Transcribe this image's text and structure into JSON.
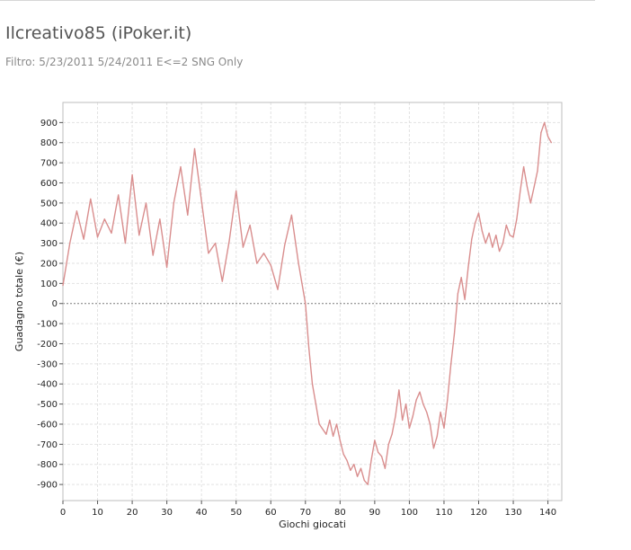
{
  "header": {
    "title": "Ilcreativo85 (iPoker.it)",
    "filter": "Filtro: 5/23/2011 5/24/2011 E<=2 SNG Only"
  },
  "colors": {
    "line": "#d98e8e",
    "grid": "#e2e2e2",
    "zero_line": "#7a7a7a",
    "frame": "#bdbdbd"
  },
  "chart_data": {
    "type": "line",
    "title": "",
    "xlabel": "Giochi giocati",
    "ylabel": "Guadagno totale  (€)",
    "xlim": [
      0,
      144
    ],
    "ylim": [
      -980,
      1000
    ],
    "x_ticks": [
      0,
      10,
      20,
      30,
      40,
      50,
      60,
      70,
      80,
      90,
      100,
      110,
      120,
      130,
      140
    ],
    "y_ticks": [
      900,
      800,
      700,
      600,
      500,
      400,
      300,
      200,
      100,
      0,
      -100,
      -200,
      -300,
      -400,
      -500,
      -600,
      -700,
      -800,
      -900
    ],
    "grid": true,
    "series": [
      {
        "x": [
          0,
          2,
          4,
          6,
          8,
          10,
          12,
          14,
          16,
          18,
          20,
          22,
          24,
          26,
          28,
          30,
          32,
          34,
          36,
          38,
          40,
          42,
          44,
          46,
          48,
          50,
          52,
          54,
          56,
          58,
          60,
          62,
          64,
          66,
          68,
          70,
          71,
          72,
          73,
          74,
          76,
          77,
          78,
          79,
          80,
          81,
          82,
          83,
          84,
          85,
          86,
          87,
          88,
          89,
          90,
          91,
          92,
          93,
          94,
          95,
          96,
          97,
          98,
          99,
          100,
          101,
          102,
          103,
          104,
          105,
          106,
          107,
          108,
          109,
          110,
          111,
          112,
          113,
          114,
          115,
          116,
          117,
          118,
          119,
          120,
          121,
          122,
          123,
          124,
          125,
          126,
          127,
          128,
          129,
          130,
          131,
          132,
          133,
          134,
          135,
          136,
          137,
          138,
          139,
          140,
          141
        ],
        "y": [
          90,
          300,
          460,
          320,
          520,
          330,
          420,
          350,
          540,
          300,
          640,
          340,
          500,
          240,
          420,
          180,
          500,
          680,
          440,
          770,
          510,
          250,
          300,
          110,
          310,
          560,
          280,
          390,
          200,
          250,
          190,
          70,
          290,
          440,
          200,
          0,
          -220,
          -400,
          -500,
          -600,
          -650,
          -580,
          -660,
          -600,
          -680,
          -750,
          -780,
          -830,
          -800,
          -860,
          -820,
          -880,
          -900,
          -780,
          -680,
          -740,
          -760,
          -820,
          -700,
          -650,
          -560,
          -430,
          -580,
          -500,
          -620,
          -560,
          -480,
          -440,
          -500,
          -540,
          -600,
          -720,
          -660,
          -540,
          -620,
          -480,
          -300,
          -150,
          50,
          130,
          20,
          180,
          320,
          400,
          450,
          360,
          300,
          350,
          280,
          340,
          260,
          300,
          390,
          340,
          330,
          420,
          560,
          680,
          580,
          500,
          580,
          660,
          850,
          900,
          830,
          800
        ]
      }
    ]
  }
}
